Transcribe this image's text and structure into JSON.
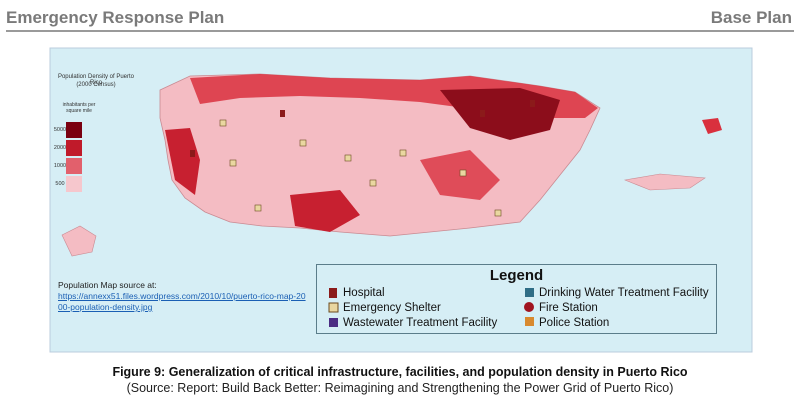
{
  "header": {
    "title": "Emergency Response Plan",
    "section": "Base Plan"
  },
  "map": {
    "title": "Population Density of Puerto Rico",
    "subtitle": "(2000 Census)",
    "scale": {
      "heading": "inhabitants per square mile",
      "levels": [
        "5000",
        "2000",
        "1000",
        "500"
      ]
    },
    "source": {
      "label": "Population Map source at:",
      "link": "https://annexx51.files.wordpress.com/2010/10/puerto-rico-map-2000-population-density.jpg"
    },
    "legend": {
      "title": "Legend",
      "items": [
        "Hospital",
        "Emergency Shelter",
        "Wastewater Treatment Facility",
        "Drinking Water Treatment Facility",
        "Fire Station",
        "Police Station"
      ]
    }
  },
  "caption": {
    "title": "Figure 9: Generalization of critical infrastructure, facilities, and population density in Puerto Rico",
    "source": "(Source: Report: Build Back Better: Reimagining and Strengthening the Power Grid of Puerto Rico)"
  }
}
